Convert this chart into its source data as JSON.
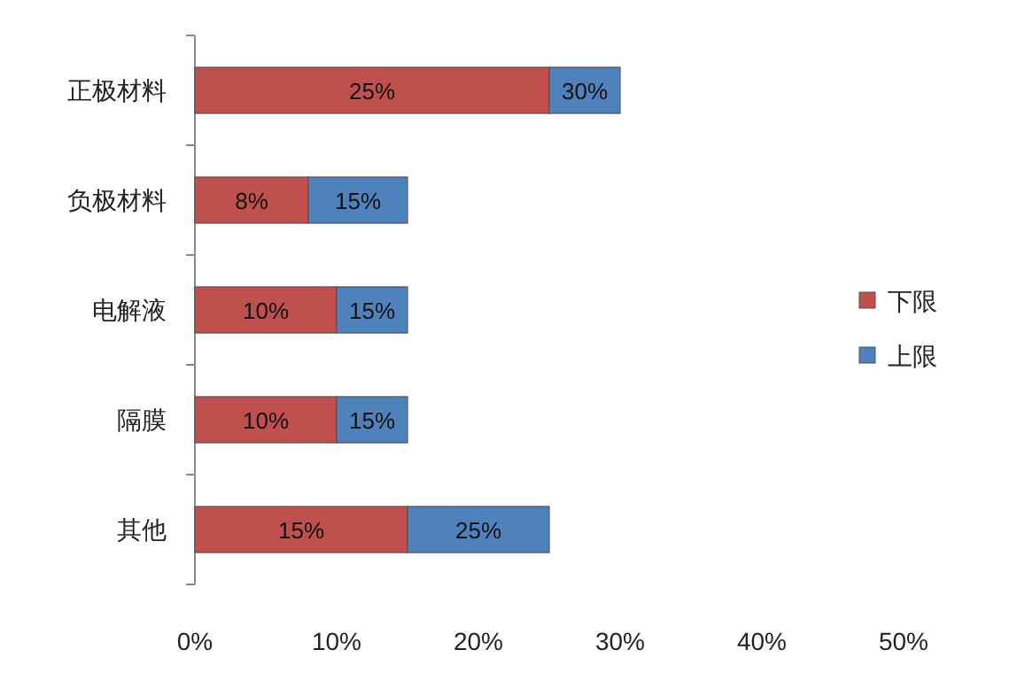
{
  "chart_data": {
    "type": "bar",
    "orientation": "horizontal",
    "stacked": true,
    "categories": [
      "正极材料",
      "负极材料",
      "电解液",
      "隔膜",
      "其他"
    ],
    "series": [
      {
        "name": "下限",
        "color": "#c0504d",
        "values": [
          25,
          8,
          10,
          10,
          15
        ],
        "value_labels": [
          "25%",
          "8%",
          "10%",
          "10%",
          "15%"
        ]
      },
      {
        "name": "上限",
        "color": "#4f81bd",
        "values": [
          5,
          7,
          5,
          5,
          10
        ]
      }
    ],
    "annotations": [
      {
        "text": "30%",
        "x": 30,
        "y": "正极材料"
      },
      {
        "text": "15%",
        "x": 15,
        "y": "负极材料"
      },
      {
        "text": "15%",
        "x": 15,
        "y": "电解液"
      },
      {
        "text": "15%",
        "x": 15,
        "y": "隔膜"
      },
      {
        "text": "25%",
        "x": 25,
        "y": "其他"
      }
    ],
    "xlim": [
      0,
      50
    ],
    "xticks": [
      {
        "value": 0,
        "label": "0%"
      },
      {
        "value": 10,
        "label": "10%"
      },
      {
        "value": 20,
        "label": "20%"
      },
      {
        "value": 30,
        "label": "30%"
      },
      {
        "value": 40,
        "label": "40%"
      },
      {
        "value": 50,
        "label": "50%"
      }
    ],
    "grid": false,
    "legend": "right"
  }
}
